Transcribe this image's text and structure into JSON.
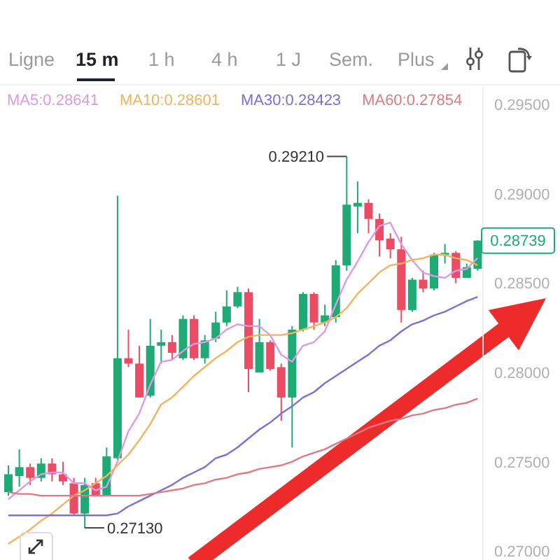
{
  "chart_data": {
    "type": "candlestick",
    "categories": [
      null,
      null,
      null,
      null,
      null,
      null,
      null,
      null,
      null,
      null,
      null,
      null,
      null,
      null,
      null,
      null,
      null,
      null,
      null,
      null,
      null,
      null,
      null,
      null,
      null,
      null,
      null,
      null,
      null,
      null,
      null,
      null,
      null,
      null,
      null,
      null,
      null,
      null,
      null,
      null,
      null,
      null,
      null,
      null
    ],
    "ohlc": [
      [
        0.2733,
        0.2748,
        0.2731,
        0.2743
      ],
      [
        0.2742,
        0.2757,
        0.2736,
        0.2747
      ],
      [
        0.2747,
        0.2749,
        0.2737,
        0.2741
      ],
      [
        0.2741,
        0.2752,
        0.2739,
        0.2749
      ],
      [
        0.2749,
        0.2752,
        0.2739,
        0.2743
      ],
      [
        0.2743,
        0.275,
        0.2737,
        0.2739
      ],
      [
        0.2738,
        0.2741,
        0.272,
        0.2721
      ],
      [
        0.2721,
        0.2741,
        0.2713,
        0.2737
      ],
      [
        0.2738,
        0.2741,
        0.2731,
        0.2731
      ],
      [
        0.2731,
        0.2758,
        0.2731,
        0.2753
      ],
      [
        0.2752,
        0.2899,
        0.2751,
        0.2808
      ],
      [
        0.2808,
        0.2824,
        0.2803,
        0.2805
      ],
      [
        0.2805,
        0.2815,
        0.2786,
        0.2786
      ],
      [
        0.2787,
        0.283,
        0.2786,
        0.2815
      ],
      [
        0.2815,
        0.2824,
        0.2805,
        0.2817
      ],
      [
        0.2817,
        0.2821,
        0.2807,
        0.2811
      ],
      [
        0.2808,
        0.2832,
        0.2807,
        0.283
      ],
      [
        0.283,
        0.2832,
        0.2807,
        0.2808
      ],
      [
        0.2808,
        0.2821,
        0.2805,
        0.2818
      ],
      [
        0.2819,
        0.2834,
        0.2817,
        0.2828
      ],
      [
        0.2828,
        0.2846,
        0.2826,
        0.2837
      ],
      [
        0.2837,
        0.2848,
        0.2836,
        0.2845
      ],
      [
        0.2845,
        0.2847,
        0.2789,
        0.2802
      ],
      [
        0.28,
        0.283,
        0.28,
        0.2817
      ],
      [
        0.2817,
        0.2818,
        0.2801,
        0.2802
      ],
      [
        0.2803,
        0.2805,
        0.2773,
        0.2786
      ],
      [
        0.2786,
        0.2826,
        0.2758,
        0.2824
      ],
      [
        0.2824,
        0.2845,
        0.2823,
        0.2844
      ],
      [
        0.2844,
        0.2845,
        0.2824,
        0.2828
      ],
      [
        0.2828,
        0.2838,
        0.2826,
        0.2832
      ],
      [
        0.2831,
        0.2863,
        0.2828,
        0.286
      ],
      [
        0.286,
        0.2921,
        0.2857,
        0.2894
      ],
      [
        0.2893,
        0.2907,
        0.2878,
        0.2895
      ],
      [
        0.2895,
        0.2897,
        0.2878,
        0.2886
      ],
      [
        0.2886,
        0.2889,
        0.2865,
        0.2874
      ],
      [
        0.2875,
        0.2878,
        0.2864,
        0.2869
      ],
      [
        0.2869,
        0.2876,
        0.2828,
        0.2835
      ],
      [
        0.2835,
        0.2853,
        0.2834,
        0.2852
      ],
      [
        0.2852,
        0.2857,
        0.2845,
        0.2847
      ],
      [
        0.2847,
        0.2867,
        0.2846,
        0.2866
      ],
      [
        0.2866,
        0.2872,
        0.2861,
        0.2867
      ],
      [
        0.2867,
        0.2868,
        0.285,
        0.2853
      ],
      [
        0.2853,
        0.2861,
        0.2853,
        0.2859
      ],
      [
        0.2858,
        0.2874,
        0.2857,
        0.28739
      ]
    ],
    "colors": [
      "#1fa974",
      "#1fa974",
      "#ec4c63",
      "#1fa974",
      "#ec4c63",
      "#ec4c63",
      "#ec4c63",
      "#1fa974",
      "#ec4c63",
      "#1fa974",
      "#1fa974",
      "#ec4c63",
      "#ec4c63",
      "#1fa974",
      "#1fa974",
      "#ec4c63",
      "#1fa974",
      "#ec4c63",
      "#1fa974",
      "#1fa974",
      "#1fa974",
      "#1fa974",
      "#ec4c63",
      "#1fa974",
      "#ec4c63",
      "#ec4c63",
      "#1fa974",
      "#1fa974",
      "#ec4c63",
      "#1fa974",
      "#1fa974",
      "#1fa974",
      "#1fa974",
      "#ec4c63",
      "#ec4c63",
      "#ec4c63",
      "#ec4c63",
      "#1fa974",
      "#ec4c63",
      "#1fa974",
      "#1fa974",
      "#ec4c63",
      "#1fa974",
      "#1fa974"
    ],
    "series": [
      {
        "name": "MA5:0.28641",
        "color": "#dc9ae6",
        "type": "line",
        "values": [
          0.2729,
          0.2734,
          0.2739,
          0.2743,
          0.2744,
          0.2744,
          0.2738,
          0.2738,
          0.2734,
          0.2736,
          0.275,
          0.2767,
          0.2777,
          0.2793,
          0.2806,
          0.2807,
          0.2812,
          0.2816,
          0.2817,
          0.2819,
          0.2824,
          0.2827,
          0.2826,
          0.2826,
          0.2821,
          0.281,
          0.2806,
          0.2815,
          0.2817,
          0.2823,
          0.2838,
          0.2852,
          0.2862,
          0.2873,
          0.2882,
          0.2884,
          0.2872,
          0.2863,
          0.2856,
          0.2854,
          0.2853,
          0.2857,
          0.2858,
          0.28641
        ]
      },
      {
        "name": "MA10:0.28601",
        "color": "#f2b35c",
        "type": "line",
        "values": [
          0.2704,
          0.2708,
          0.2712,
          0.2717,
          0.2721,
          0.2726,
          0.2731,
          0.2734,
          0.2738,
          0.2742,
          0.2748,
          0.2754,
          0.2762,
          0.2771,
          0.2782,
          0.2786,
          0.2792,
          0.2798,
          0.2803,
          0.2808,
          0.2812,
          0.2817,
          0.282,
          0.2821,
          0.2821,
          0.2821,
          0.2822,
          0.2824,
          0.2826,
          0.2828,
          0.2831,
          0.2836,
          0.2844,
          0.285,
          0.2856,
          0.286,
          0.2861,
          0.2863,
          0.2864,
          0.2866,
          0.2866,
          0.2864,
          0.2863,
          0.28601
        ]
      },
      {
        "name": "MA30:0.28423",
        "color": "#7c6fd8",
        "type": "line",
        "values": [
          0.272,
          0.272,
          0.272,
          0.272,
          0.272,
          0.272,
          0.272,
          0.272,
          0.272,
          0.272,
          0.2721,
          0.2725,
          0.2728,
          0.2731,
          0.2734,
          0.2737,
          0.2741,
          0.2744,
          0.2747,
          0.2752,
          0.2754,
          0.2758,
          0.2763,
          0.2768,
          0.2772,
          0.2777,
          0.2781,
          0.2786,
          0.2789,
          0.2794,
          0.2798,
          0.2802,
          0.2806,
          0.281,
          0.2815,
          0.2818,
          0.2823,
          0.2827,
          0.2829,
          0.2832,
          0.2834,
          0.2837,
          0.284,
          0.28423
        ]
      },
      {
        "name": "MA60:0.27854",
        "color": "#de7a84",
        "type": "line",
        "values": [
          0.2733,
          0.2732,
          0.2732,
          0.2731,
          0.2731,
          0.2731,
          0.2731,
          0.2731,
          0.2731,
          0.2731,
          0.2731,
          0.2731,
          0.2731,
          0.2732,
          0.2733,
          0.2734,
          0.2735,
          0.2737,
          0.2738,
          0.274,
          0.2741,
          0.2743,
          0.2744,
          0.2746,
          0.2747,
          0.2748,
          0.275,
          0.2753,
          0.2755,
          0.2757,
          0.276,
          0.2763,
          0.2766,
          0.2769,
          0.2771,
          0.2773,
          0.2774,
          0.2776,
          0.2777,
          0.2779,
          0.278,
          0.2782,
          0.2783,
          0.27854
        ]
      }
    ],
    "ylim": [
      0.2695,
      0.296
    ],
    "yticks": [
      {
        "value": 0.27,
        "label": "0.27000"
      },
      {
        "value": 0.275,
        "label": "0.27500"
      },
      {
        "value": 0.28,
        "label": "0.28000"
      },
      {
        "value": 0.285,
        "label": "0.28500"
      },
      {
        "value": 0.29,
        "label": "0.29000"
      },
      {
        "value": 0.295,
        "label": "0.29500"
      }
    ],
    "tick_labels": "y",
    "legend": "top left",
    "annotations": [
      "Ligne",
      "15 m",
      "1 h",
      "4 h",
      "1 J",
      "Sem.",
      "Plus",
      "0.29210",
      "0.27130",
      "0.28739"
    ]
  }
}
